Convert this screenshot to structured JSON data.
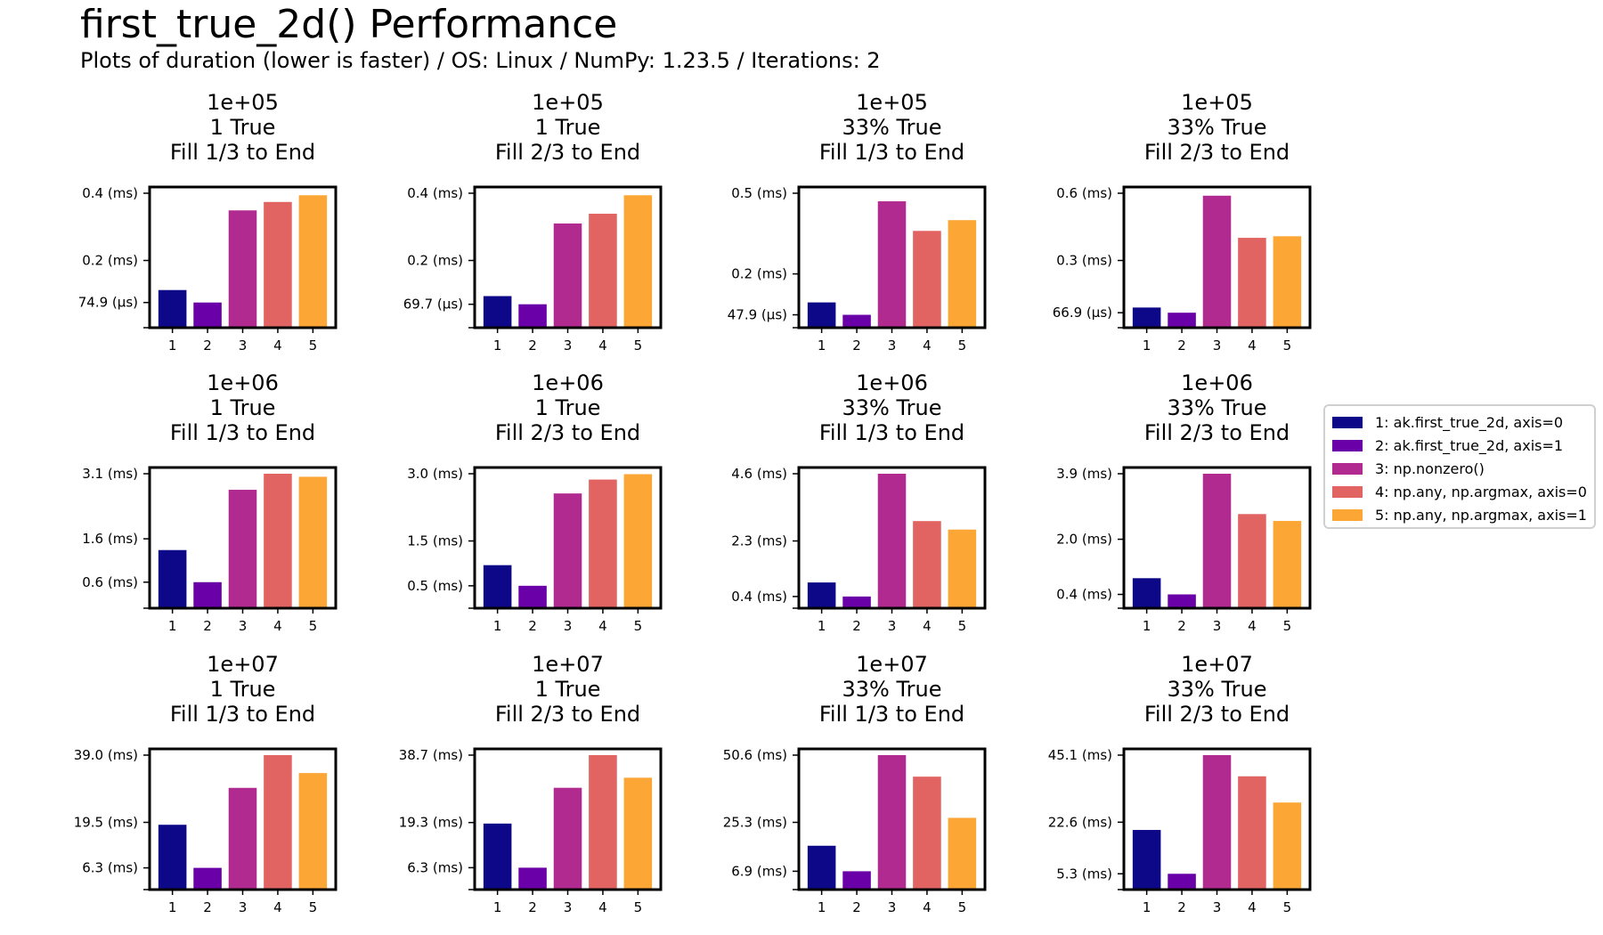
{
  "title": "first_true_2d() Performance",
  "subtitle": "Plots of duration (lower is faster) / OS: Linux / NumPy: 1.23.5 / Iterations: 2",
  "legend": [
    {
      "label": "1: ak.first_true_2d, axis=0",
      "color": "#0d0887"
    },
    {
      "label": "2: ak.first_true_2d, axis=1",
      "color": "#6a00a8"
    },
    {
      "label": "3: np.nonzero()",
      "color": "#b12a90"
    },
    {
      "label": "4: np.any, np.argmax, axis=0",
      "color": "#e16462"
    },
    {
      "label": "5: np.any, np.argmax, axis=1",
      "color": "#fca636"
    }
  ],
  "chart_data": [
    {
      "type": "bar",
      "title": [
        "1e+05",
        "1 True",
        "Fill 1/3 to End"
      ],
      "categories": [
        "1",
        "2",
        "3",
        "4",
        "5"
      ],
      "unit": "ms",
      "values": [
        0.112,
        0.0749,
        0.349,
        0.374,
        0.394
      ],
      "yticks": [
        {
          "value": 0.0749,
          "label": "74.9 (µs)"
        },
        {
          "value": 0.2,
          "label": "0.2 (ms)"
        },
        {
          "value": 0.4,
          "label": "0.4 (ms)"
        }
      ],
      "ylim": [
        0,
        0.4
      ]
    },
    {
      "type": "bar",
      "title": [
        "1e+05",
        "1 True",
        "Fill 2/3 to End"
      ],
      "categories": [
        "1",
        "2",
        "3",
        "4",
        "5"
      ],
      "unit": "ms",
      "values": [
        0.094,
        0.0697,
        0.31,
        0.339,
        0.394
      ],
      "yticks": [
        {
          "value": 0.0697,
          "label": "69.7 (µs)"
        },
        {
          "value": 0.2,
          "label": "0.2 (ms)"
        },
        {
          "value": 0.4,
          "label": "0.4 (ms)"
        }
      ],
      "ylim": [
        0,
        0.4
      ]
    },
    {
      "type": "bar",
      "title": [
        "1e+05",
        "33% True",
        "Fill 1/3 to End"
      ],
      "categories": [
        "1",
        "2",
        "3",
        "4",
        "5"
      ],
      "unit": "ms",
      "values": [
        0.094,
        0.0479,
        0.47,
        0.36,
        0.4
      ],
      "yticks": [
        {
          "value": 0.0479,
          "label": "47.9 (µs)"
        },
        {
          "value": 0.2,
          "label": "0.2 (ms)"
        },
        {
          "value": 0.5,
          "label": "0.5 (ms)"
        }
      ],
      "ylim": [
        0,
        0.5
      ]
    },
    {
      "type": "bar",
      "title": [
        "1e+05",
        "33% True",
        "Fill 2/3 to End"
      ],
      "categories": [
        "1",
        "2",
        "3",
        "4",
        "5"
      ],
      "unit": "ms",
      "values": [
        0.09,
        0.0669,
        0.589,
        0.401,
        0.408
      ],
      "yticks": [
        {
          "value": 0.0669,
          "label": "66.9 (µs)"
        },
        {
          "value": 0.3,
          "label": "0.3 (ms)"
        },
        {
          "value": 0.6,
          "label": "0.6 (ms)"
        }
      ],
      "ylim": [
        0,
        0.6
      ]
    },
    {
      "type": "bar",
      "title": [
        "1e+06",
        "1 True",
        "Fill 1/3 to End"
      ],
      "categories": [
        "1",
        "2",
        "3",
        "4",
        "5"
      ],
      "unit": "ms",
      "values": [
        1.34,
        0.6,
        2.73,
        3.1,
        3.03
      ],
      "yticks": [
        {
          "value": 0.6,
          "label": "0.6 (ms)"
        },
        {
          "value": 1.6,
          "label": "1.6 (ms)"
        },
        {
          "value": 3.1,
          "label": "3.1 (ms)"
        }
      ],
      "ylim": [
        0,
        3.1
      ]
    },
    {
      "type": "bar",
      "title": [
        "1e+06",
        "1 True",
        "Fill 2/3 to End"
      ],
      "categories": [
        "1",
        "2",
        "3",
        "4",
        "5"
      ],
      "unit": "ms",
      "values": [
        0.96,
        0.5,
        2.56,
        2.87,
        2.99
      ],
      "yticks": [
        {
          "value": 0.5,
          "label": "0.5 (ms)"
        },
        {
          "value": 1.5,
          "label": "1.5 (ms)"
        },
        {
          "value": 3.0,
          "label": "3.0 (ms)"
        }
      ],
      "ylim": [
        0,
        3.0
      ]
    },
    {
      "type": "bar",
      "title": [
        "1e+06",
        "33% True",
        "Fill 1/3 to End"
      ],
      "categories": [
        "1",
        "2",
        "3",
        "4",
        "5"
      ],
      "unit": "ms",
      "values": [
        0.88,
        0.4,
        4.6,
        2.98,
        2.69
      ],
      "yticks": [
        {
          "value": 0.4,
          "label": "0.4 (ms)"
        },
        {
          "value": 2.3,
          "label": "2.3 (ms)"
        },
        {
          "value": 4.6,
          "label": "4.6 (ms)"
        }
      ],
      "ylim": [
        0,
        4.6
      ]
    },
    {
      "type": "bar",
      "title": [
        "1e+06",
        "33% True",
        "Fill 2/3 to End"
      ],
      "categories": [
        "1",
        "2",
        "3",
        "4",
        "5"
      ],
      "unit": "ms",
      "values": [
        0.87,
        0.4,
        3.9,
        2.73,
        2.53
      ],
      "yticks": [
        {
          "value": 0.4,
          "label": "0.4 (ms)"
        },
        {
          "value": 2.0,
          "label": "2.0 (ms)"
        },
        {
          "value": 3.9,
          "label": "3.9 (ms)"
        }
      ],
      "ylim": [
        0,
        3.9
      ]
    },
    {
      "type": "bar",
      "title": [
        "1e+07",
        "1 True",
        "Fill 1/3 to End"
      ],
      "categories": [
        "1",
        "2",
        "3",
        "4",
        "5"
      ],
      "unit": "ms",
      "values": [
        18.8,
        6.3,
        29.5,
        39.0,
        33.8
      ],
      "yticks": [
        {
          "value": 6.3,
          "label": "6.3 (ms)"
        },
        {
          "value": 19.5,
          "label": "19.5 (ms)"
        },
        {
          "value": 39.0,
          "label": "39.0 (ms)"
        }
      ],
      "ylim": [
        0,
        39.0
      ]
    },
    {
      "type": "bar",
      "title": [
        "1e+07",
        "1 True",
        "Fill 2/3 to End"
      ],
      "categories": [
        "1",
        "2",
        "3",
        "4",
        "5"
      ],
      "unit": "ms",
      "values": [
        19.0,
        6.3,
        29.3,
        38.7,
        32.2
      ],
      "yticks": [
        {
          "value": 6.3,
          "label": "6.3 (ms)"
        },
        {
          "value": 19.3,
          "label": "19.3 (ms)"
        },
        {
          "value": 38.7,
          "label": "38.7 (ms)"
        }
      ],
      "ylim": [
        0,
        38.7
      ]
    },
    {
      "type": "bar",
      "title": [
        "1e+07",
        "33% True",
        "Fill 1/3 to End"
      ],
      "categories": [
        "1",
        "2",
        "3",
        "4",
        "5"
      ],
      "unit": "ms",
      "values": [
        16.5,
        6.9,
        50.6,
        42.5,
        27.0
      ],
      "yticks": [
        {
          "value": 6.9,
          "label": "6.9 (ms)"
        },
        {
          "value": 25.3,
          "label": "25.3 (ms)"
        },
        {
          "value": 50.6,
          "label": "50.6 (ms)"
        }
      ],
      "ylim": [
        0,
        50.6
      ]
    },
    {
      "type": "bar",
      "title": [
        "1e+07",
        "33% True",
        "Fill 2/3 to End"
      ],
      "categories": [
        "1",
        "2",
        "3",
        "4",
        "5"
      ],
      "unit": "ms",
      "values": [
        20.0,
        5.3,
        45.1,
        38.0,
        29.2
      ],
      "yticks": [
        {
          "value": 5.3,
          "label": "5.3 (ms)"
        },
        {
          "value": 22.6,
          "label": "22.6 (ms)"
        },
        {
          "value": 45.1,
          "label": "45.1 (ms)"
        }
      ],
      "ylim": [
        0,
        45.1
      ]
    }
  ]
}
